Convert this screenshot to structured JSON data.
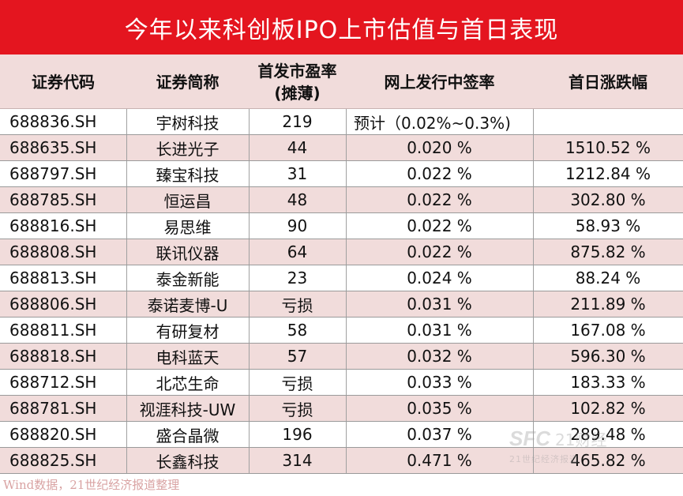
{
  "title": "今年以来科创板IPO上市估值与首日表现",
  "headers": {
    "code": "证券代码",
    "name": "证券简称",
    "pe_line1": "首发市盈率",
    "pe_line2": "(摊薄)",
    "lottery": "网上发行中签率",
    "first_day": "首日涨跌幅"
  },
  "chart_data": {
    "type": "table",
    "title": "今年以来科创板IPO上市估值与首日表现",
    "columns": [
      "证券代码",
      "证券简称",
      "首发市盈率 (摊薄)",
      "网上发行中签率",
      "首日涨跌幅"
    ],
    "rows": [
      [
        "688836.SH",
        "宇树科技",
        "219",
        "预计（0.02%~0.3%)",
        ""
      ],
      [
        "688635.SH",
        "长进光子",
        "44",
        "0.020 %",
        "1510.52 %"
      ],
      [
        "688797.SH",
        "臻宝科技",
        "31",
        "0.022 %",
        "1212.84 %"
      ],
      [
        "688785.SH",
        "恒运昌",
        "48",
        "0.022 %",
        "302.80 %"
      ],
      [
        "688816.SH",
        "易思维",
        "90",
        "0.022 %",
        "58.93 %"
      ],
      [
        "688808.SH",
        "联讯仪器",
        "64",
        "0.022 %",
        "875.82 %"
      ],
      [
        "688813.SH",
        "泰金新能",
        "23",
        "0.024 %",
        "88.24 %"
      ],
      [
        "688806.SH",
        "泰诺麦博-U",
        "亏损",
        "0.031 %",
        "211.89 %"
      ],
      [
        "688811.SH",
        "有研复材",
        "58",
        "0.031 %",
        "167.08 %"
      ],
      [
        "688818.SH",
        "电科蓝天",
        "57",
        "0.032 %",
        "596.30 %"
      ],
      [
        "688712.SH",
        "北芯生命",
        "亏损",
        "0.033 %",
        "183.33 %"
      ],
      [
        "688781.SH",
        "视涯科技-UW",
        "亏损",
        "0.035 %",
        "102.82 %"
      ],
      [
        "688820.SH",
        "盛合晶微",
        "196",
        "0.037 %",
        "289.48 %"
      ],
      [
        "688825.SH",
        "长鑫科技",
        "314",
        "0.471 %",
        "465.82 %"
      ]
    ]
  },
  "footer": "Wind数据，21世纪经济报道整理",
  "watermark": {
    "logo": "SFC",
    "text": "21财经",
    "sub": "21世纪经济报道"
  },
  "colors": {
    "title_bg": "#e4151f",
    "row_pink": "#f1dcdb",
    "row_white": "#ffffff"
  }
}
